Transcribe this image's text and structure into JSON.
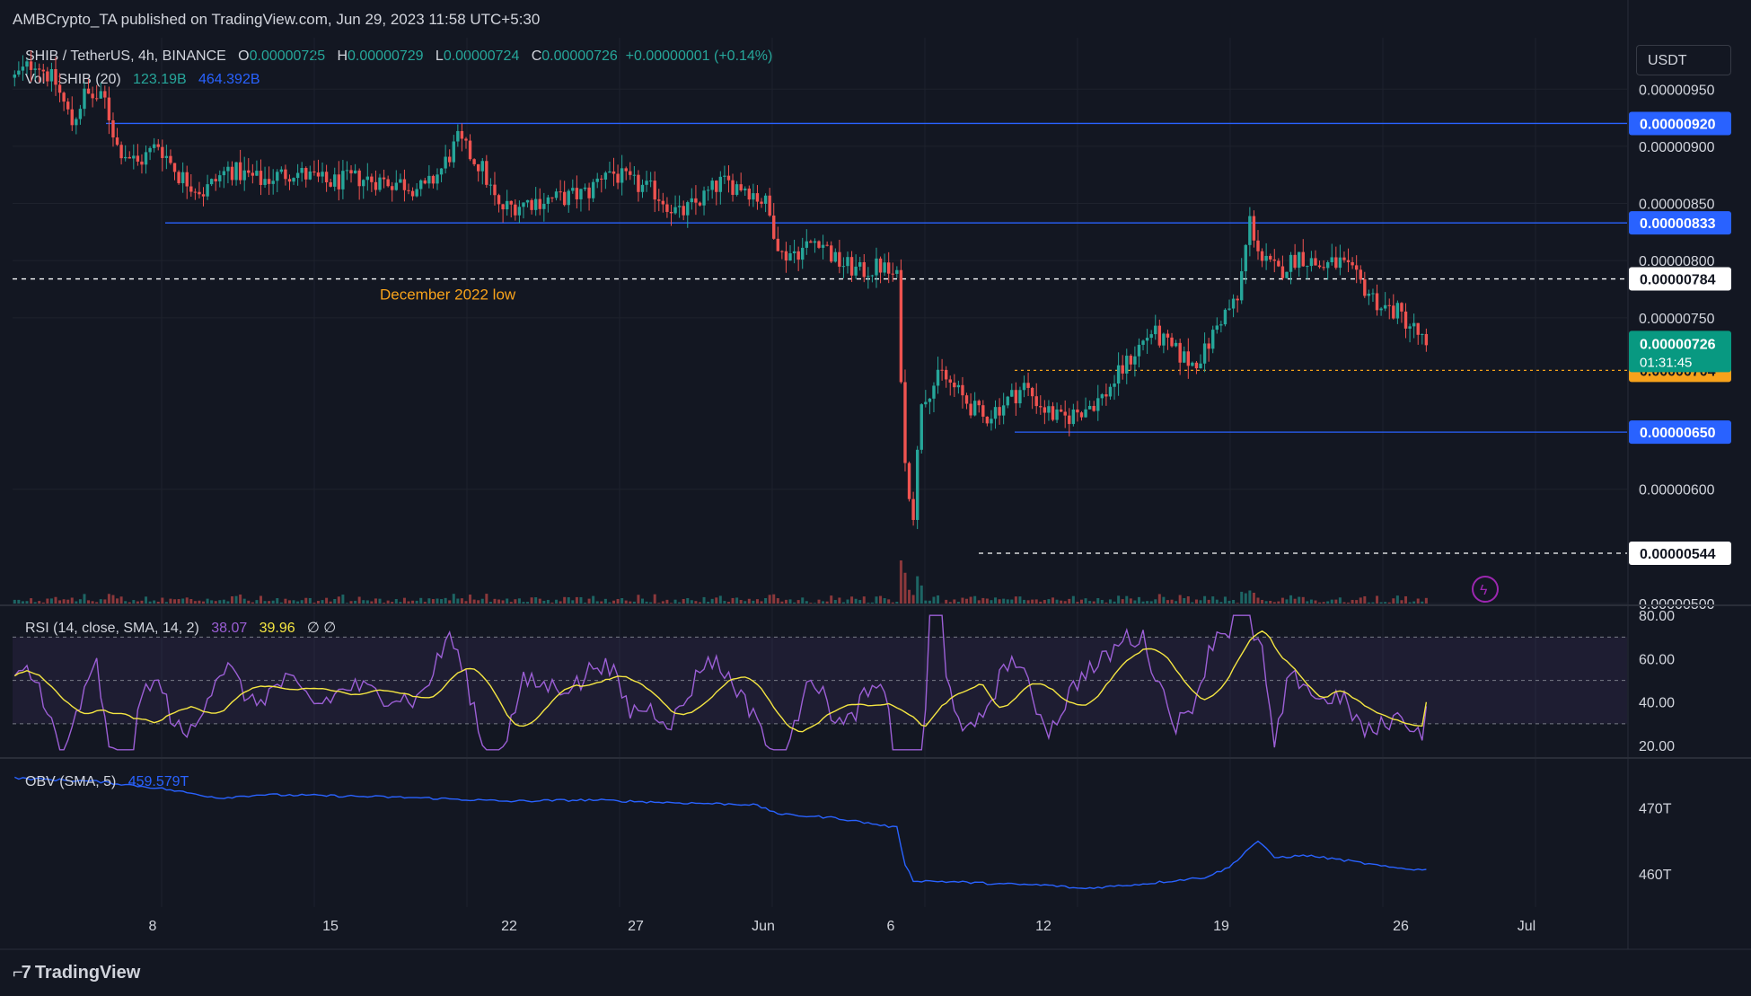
{
  "header": {
    "published": "AMBCrypto_TA published on TradingView.com, Jun 29, 2023 11:58 UTC+5:30"
  },
  "legend": {
    "symbol": "SHIB / TetherUS, 4h, BINANCE",
    "o_label": "O",
    "o_value": "0.00000725",
    "h_label": "H",
    "h_value": "0.00000729",
    "l_label": "L",
    "l_value": "0.00000724",
    "c_label": "C",
    "c_value": "0.00000726",
    "change": "+0.00000001 (+0.14%)",
    "vol_label": "Vol · SHIB (20)",
    "vol_value": "123.19B",
    "vol_ma": "464.392B"
  },
  "currency": "USDT",
  "brand": "TradingView",
  "colors": {
    "bg": "#131722",
    "up": "#26a69a",
    "down": "#ef5350",
    "level": "#2962ff",
    "annotation": "#f7a21b",
    "rsi": "#9c5fd6",
    "rsi_ma": "#f5e642",
    "obv": "#2962ff",
    "current": "#089981"
  },
  "chart_data": [
    {
      "type": "candlestick",
      "x_tick_labels": [
        "8",
        "15",
        "22",
        "27",
        "Jun",
        "6",
        "12",
        "19",
        "26",
        "Jul"
      ],
      "y_tick_labels": [
        "0.00000950",
        "0.00000900",
        "0.00000850",
        "0.00000800",
        "0.00000750",
        "0.00000600",
        "0.00000500"
      ],
      "y_range": [
        5e-06,
        9.95e-06
      ],
      "levels": [
        {
          "label": "0.00000920",
          "value": 9.2e-06,
          "style": "solid"
        },
        {
          "label": "0.00000833",
          "value": 8.33e-06,
          "style": "solid"
        },
        {
          "label": "0.00000784",
          "value": 7.84e-06,
          "style": "dashed"
        },
        {
          "label": "0.00000704",
          "value": 7.04e-06,
          "style": "dotted"
        },
        {
          "label": "0.00000650",
          "value": 6.5e-06,
          "style": "solid"
        },
        {
          "label": "0.00000544",
          "value": 5.44e-06,
          "style": "dashed"
        }
      ],
      "current_price": {
        "label": "0.00000726",
        "countdown": "01:31:45",
        "value": 7.26e-06
      },
      "annotation": "December 2022 low",
      "path_points": [
        [
          0,
          9.6e-06
        ],
        [
          5,
          9.75e-06
        ],
        [
          10,
          9.55e-06
        ],
        [
          14,
          9.2e-06
        ],
        [
          17,
          9.45e-06
        ],
        [
          22,
          9.4e-06
        ],
        [
          25,
          9e-06
        ],
        [
          30,
          8.85e-06
        ],
        [
          35,
          9.02e-06
        ],
        [
          40,
          8.75e-06
        ],
        [
          46,
          8.6e-06
        ],
        [
          52,
          8.8e-06
        ],
        [
          60,
          8.7e-06
        ],
        [
          68,
          8.78e-06
        ],
        [
          76,
          8.68e-06
        ],
        [
          84,
          8.72e-06
        ],
        [
          94,
          8.68e-06
        ],
        [
          100,
          8.62e-06
        ],
        [
          104,
          8.8e-06
        ],
        [
          108,
          9.05e-06
        ],
        [
          114,
          8.8e-06
        ],
        [
          118,
          8.45e-06
        ],
        [
          126,
          8.52e-06
        ],
        [
          134,
          8.55e-06
        ],
        [
          140,
          8.6e-06
        ],
        [
          144,
          8.8e-06
        ],
        [
          150,
          8.68e-06
        ],
        [
          156,
          8.6e-06
        ],
        [
          162,
          8.4e-06
        ],
        [
          166,
          8.5e-06
        ],
        [
          172,
          8.68e-06
        ],
        [
          178,
          8.65e-06
        ],
        [
          183,
          8.5e-06
        ],
        [
          187,
          8.05e-06
        ],
        [
          192,
          8.1e-06
        ],
        [
          196,
          8.2e-06
        ],
        [
          200,
          8e-06
        ],
        [
          206,
          7.9e-06
        ],
        [
          211,
          7.95e-06
        ],
        [
          215,
          7.84e-06
        ],
        [
          217,
          6.2e-06
        ],
        [
          219,
          5.8e-06
        ],
        [
          221,
          6.8e-06
        ],
        [
          226,
          7e-06
        ],
        [
          231,
          6.8e-06
        ],
        [
          236,
          6.62e-06
        ],
        [
          241,
          6.75e-06
        ],
        [
          246,
          6.9e-06
        ],
        [
          251,
          6.7e-06
        ],
        [
          255,
          6.6e-06
        ],
        [
          260,
          6.7e-06
        ],
        [
          265,
          6.8e-06
        ],
        [
          270,
          7.05e-06
        ],
        [
          273,
          7.2e-06
        ],
        [
          277,
          7.38e-06
        ],
        [
          282,
          7.22e-06
        ],
        [
          287,
          7.1e-06
        ],
        [
          290,
          7.2e-06
        ],
        [
          294,
          7.5e-06
        ],
        [
          298,
          7.65e-06
        ],
        [
          301,
          8.35e-06
        ],
        [
          304,
          8e-06
        ],
        [
          308,
          7.9e-06
        ],
        [
          313,
          8.05e-06
        ],
        [
          318,
          7.95e-06
        ],
        [
          323,
          7.98e-06
        ],
        [
          328,
          7.8e-06
        ],
        [
          333,
          7.6e-06
        ],
        [
          337,
          7.55e-06
        ],
        [
          341,
          7.4e-06
        ],
        [
          344,
          7.26e-06
        ]
      ]
    },
    {
      "type": "line",
      "name": "RSI (14, close, SMA, 14, 2)",
      "rsi_value": "38.07",
      "rsi_ma_value": "39.96",
      "extra": "∅ ∅",
      "y_tick_labels": [
        "80.00",
        "60.00",
        "40.00",
        "20.00"
      ],
      "y_range": [
        15,
        83
      ],
      "bands": [
        30,
        50,
        70
      ]
    },
    {
      "type": "line",
      "name": "OBV (SMA, 5)",
      "value": "459.579T",
      "y_tick_labels": [
        "470T",
        "460T"
      ],
      "y_range": [
        455,
        477
      ],
      "path_points": [
        [
          0,
          474.5
        ],
        [
          20,
          474.0
        ],
        [
          35,
          473.0
        ],
        [
          50,
          471.5
        ],
        [
          60,
          472.0
        ],
        [
          80,
          471.8
        ],
        [
          100,
          471.5
        ],
        [
          120,
          471.0
        ],
        [
          140,
          471.2
        ],
        [
          160,
          470.8
        ],
        [
          180,
          470.5
        ],
        [
          187,
          469.0
        ],
        [
          200,
          468.5
        ],
        [
          210,
          467.5
        ],
        [
          215,
          467.0
        ],
        [
          217,
          461.5
        ],
        [
          219,
          459.0
        ],
        [
          230,
          458.8
        ],
        [
          240,
          458.5
        ],
        [
          252,
          458.3
        ],
        [
          260,
          457.8
        ],
        [
          275,
          458.5
        ],
        [
          290,
          459.5
        ],
        [
          296,
          461.0
        ],
        [
          301,
          464.0
        ],
        [
          303,
          465.0
        ],
        [
          307,
          462.5
        ],
        [
          315,
          462.8
        ],
        [
          325,
          462.0
        ],
        [
          335,
          461.0
        ],
        [
          344,
          460.6
        ]
      ]
    }
  ]
}
